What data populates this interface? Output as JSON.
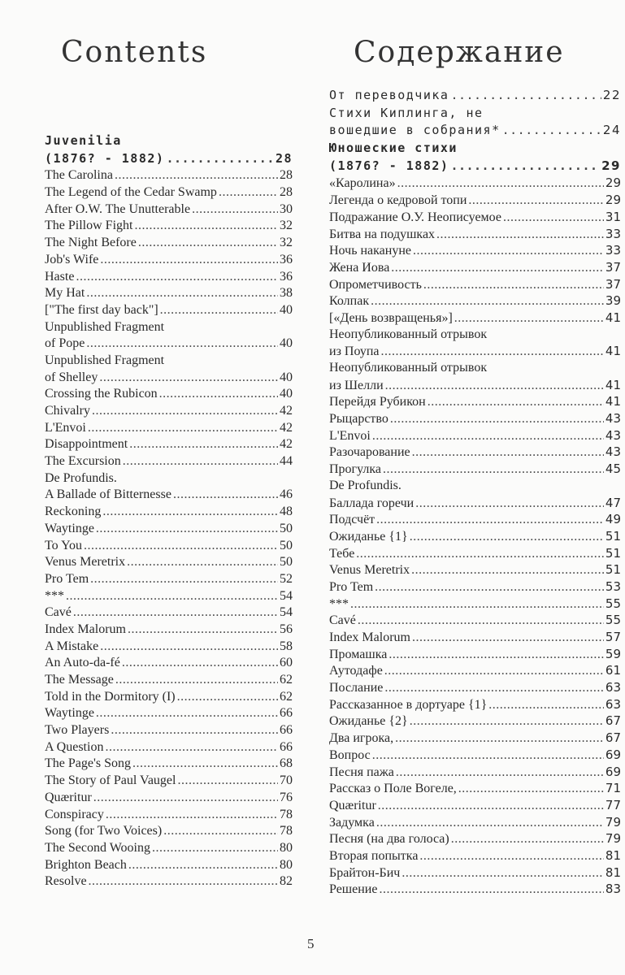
{
  "page_number": "5",
  "left": {
    "title": "Contents",
    "entries": [
      {
        "t": "Juvenilia",
        "mono": true,
        "bold": true
      },
      {
        "t": "(1876? - 1882)",
        "p": "28",
        "mono": true,
        "bold": true
      },
      {
        "t": "The Carolina",
        "p": "28"
      },
      {
        "t": "The Legend of the Cedar Swamp",
        "p": "28"
      },
      {
        "t": "After O.W. The Unutterable",
        "p": "30"
      },
      {
        "t": "The Pillow Fight",
        "p": "32"
      },
      {
        "t": "The Night Before",
        "p": "32"
      },
      {
        "t": "Job's Wife",
        "p": "36"
      },
      {
        "t": "Haste",
        "p": "36"
      },
      {
        "t": "My Hat",
        "p": "38"
      },
      {
        "t": "[\"The first day back\"]",
        "p": "40"
      },
      {
        "t": "Unpublished Fragment"
      },
      {
        "t": "of Pope",
        "p": "40"
      },
      {
        "t": "Unpublished Fragment"
      },
      {
        "t": "of Shelley",
        "p": "40"
      },
      {
        "t": "Crossing the Rubicon",
        "p": "40"
      },
      {
        "t": "Chivalry",
        "p": "42"
      },
      {
        "t": "L'Envoi",
        "p": "42"
      },
      {
        "t": "Disappointment",
        "p": "42"
      },
      {
        "t": "The Excursion",
        "p": "44"
      },
      {
        "t": "De Profundis."
      },
      {
        "t": "A Ballade of Bitternesse",
        "p": "46"
      },
      {
        "t": "Reckoning",
        "p": "48"
      },
      {
        "t": "Waytinge",
        "p": "50"
      },
      {
        "t": "To You",
        "p": "50"
      },
      {
        "t": "Venus Meretrix",
        "p": "50"
      },
      {
        "t": "Pro Tem",
        "p": "52"
      },
      {
        "t": "***",
        "p": "54"
      },
      {
        "t": "Cavé",
        "p": "54"
      },
      {
        "t": "Index Malorum",
        "p": "56"
      },
      {
        "t": "A Mistake",
        "p": "58"
      },
      {
        "t": "An Auto-da-fé",
        "p": "60"
      },
      {
        "t": "The Message",
        "p": "62"
      },
      {
        "t": "Told in the Dormitory (I)",
        "p": "62"
      },
      {
        "t": "Waytinge",
        "p": "66"
      },
      {
        "t": "Two Players",
        "p": "66"
      },
      {
        "t": "A Question",
        "p": "66"
      },
      {
        "t": "The Page's Song",
        "p": "68"
      },
      {
        "t": "The Story of Paul Vaugel",
        "p": "70"
      },
      {
        "t": "Quæritur",
        "p": "76"
      },
      {
        "t": "Conspiracy",
        "p": "78"
      },
      {
        "t": "Song (for Two Voices)",
        "p": "78"
      },
      {
        "t": "The Second Wooing",
        "p": "80"
      },
      {
        "t": "Brighton Beach",
        "p": "80"
      },
      {
        "t": "Resolve",
        "p": "82"
      }
    ]
  },
  "right": {
    "title": "Содержание",
    "entries": [
      {
        "t": "От переводчика",
        "p": "22",
        "mono": true
      },
      {
        "t": "Стихи Киплинга, не",
        "mono": true
      },
      {
        "t": "вошедшие в собрания*",
        "p": "24",
        "mono": true
      },
      {
        "t": "Юношеские стихи",
        "mono": true,
        "bold": true
      },
      {
        "t": "(1876? - 1882)",
        "p": "29",
        "mono": true,
        "bold": true
      },
      {
        "t": "«Каролина»",
        "p": "29"
      },
      {
        "t": "Легенда о кедровой топи",
        "p": "29"
      },
      {
        "t": "Подражание О.У. Неописуемое",
        "p": "31"
      },
      {
        "t": "Битва на подушках",
        "p": "33"
      },
      {
        "t": "Ночь накануне",
        "p": "33"
      },
      {
        "t": "Жена Иова",
        "p": "37"
      },
      {
        "t": "Опрометчивость",
        "p": "37"
      },
      {
        "t": "Колпак",
        "p": "39"
      },
      {
        "t": "[«День возвращенья»]",
        "p": "41"
      },
      {
        "t": "Неопубликованный отрывок"
      },
      {
        "t": "из Поупа",
        "p": "41"
      },
      {
        "t": "Неопубликованный отрывок"
      },
      {
        "t": "из Шелли",
        "p": "41"
      },
      {
        "t": "Перейдя Рубикон",
        "p": "41"
      },
      {
        "t": "Рыцарство",
        "p": "43"
      },
      {
        "t": "L'Envoi",
        "p": "43"
      },
      {
        "t": "Разочарование",
        "p": "43"
      },
      {
        "t": "Прогулка",
        "p": "45"
      },
      {
        "t": "De Profundis."
      },
      {
        "t": "Баллада горечи",
        "p": "47"
      },
      {
        "t": "Подсчёт",
        "p": "49"
      },
      {
        "t": "Ожиданье {1}",
        "p": "51"
      },
      {
        "t": "Тебе",
        "p": "51"
      },
      {
        "t": "Venus Meretrix",
        "p": "51"
      },
      {
        "t": "Pro Tem",
        "p": "53"
      },
      {
        "t": "***",
        "p": "55"
      },
      {
        "t": "Cavé",
        "p": "55"
      },
      {
        "t": "Index Malorum",
        "p": "57"
      },
      {
        "t": "Промашка",
        "p": "59"
      },
      {
        "t": "Аутодафе",
        "p": "61"
      },
      {
        "t": "Послание",
        "p": "63"
      },
      {
        "t": "Рассказанное в дортуаре {1}",
        "p": "63"
      },
      {
        "t": "Ожиданье {2}",
        "p": "67"
      },
      {
        "t": "Два игрока,",
        "p": "67"
      },
      {
        "t": "Вопрос",
        "p": "69"
      },
      {
        "t": "Песня пажа",
        "p": "69"
      },
      {
        "t": "Рассказ о Поле Вогеле,",
        "p": "71"
      },
      {
        "t": "Quæritur",
        "p": "77"
      },
      {
        "t": "Задумка",
        "p": "79"
      },
      {
        "t": "Песня (на два голоса)",
        "p": "79"
      },
      {
        "t": "Вторая попытка",
        "p": "81"
      },
      {
        "t": "Брайтон-Бич",
        "p": "81"
      },
      {
        "t": "Решение",
        "p": "83"
      }
    ]
  }
}
